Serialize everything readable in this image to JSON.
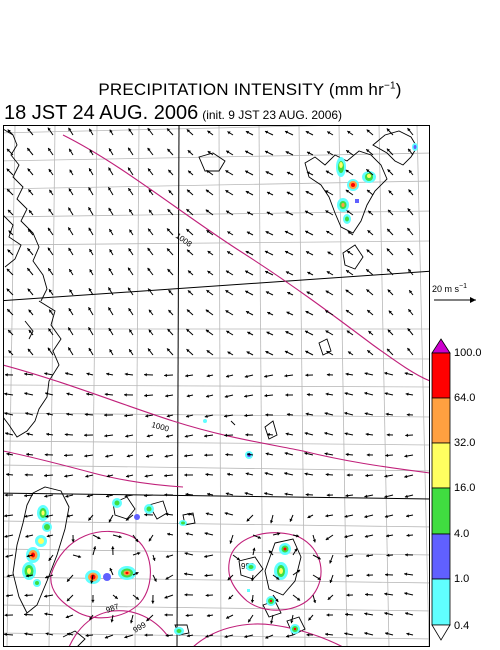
{
  "header": {
    "title_main": "PRECIPITATION INTENSITY (mm hr",
    "title_exp": "−1",
    "title_end": ")",
    "valid_time": "18 JST 24 AUG. 2006",
    "init_time": "(init. 9 JST 23 AUG. 2006)"
  },
  "wind_scale": {
    "label_main": "20 m s",
    "label_exp": "−1"
  },
  "isobars": {
    "labels": [
      "1008",
      "1000",
      "993",
      "987",
      "999"
    ]
  },
  "legend": {
    "levels": [
      "100.0",
      "64.0",
      "32.0",
      "16.0",
      "4.0",
      "1.0",
      "0.4"
    ],
    "colors": [
      "#cc00cc",
      "#ff0000",
      "#ffa040",
      "#ffff60",
      "#40dd40",
      "#6060ff",
      "#60ffff",
      "#ffffff"
    ]
  }
}
